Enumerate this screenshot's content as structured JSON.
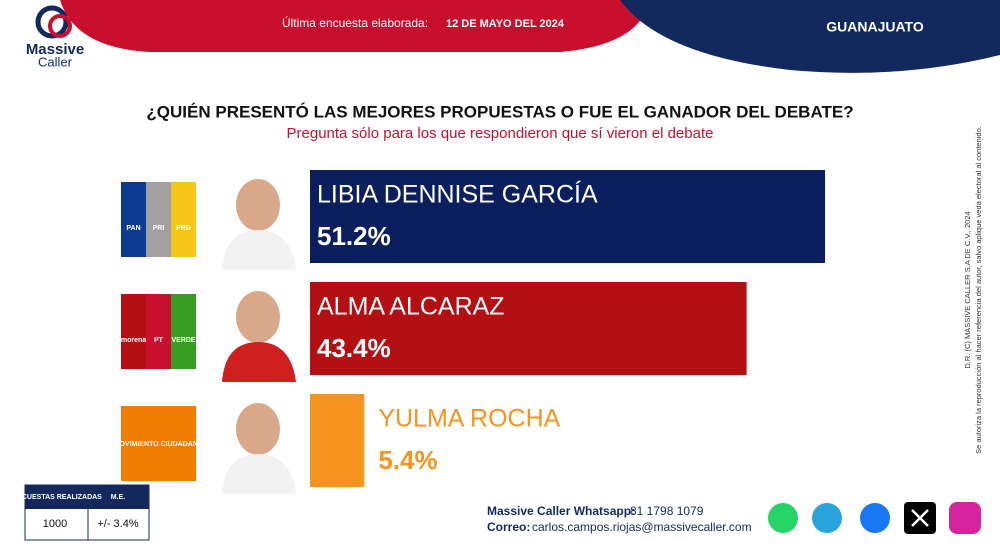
{
  "logo": {
    "line1": "Massive",
    "line2": "Caller"
  },
  "header": {
    "label": "Última encuesta elaborada:",
    "date": "12 DE MAYO DEL 2024",
    "region": "GUANAJUATO"
  },
  "chart_data": {
    "type": "bar",
    "orientation": "horizontal",
    "title": "¿QUIÉN PRESENTÓ LAS MEJORES PROPUESTAS O FUE EL GANADOR DEL DEBATE?",
    "subtitle": "Pregunta sólo para los que respondieron que sí vieron el debate",
    "categories": [
      "LIBIA DENNISE GARCÍA",
      "ALMA ALCARAZ",
      "YULMA ROCHA"
    ],
    "values": [
      51.2,
      43.4,
      5.4
    ],
    "value_labels": [
      "51.2%",
      "43.4%",
      "5.4%"
    ],
    "colors": [
      "#0b1f5e",
      "#b40f12",
      "#f7931e"
    ],
    "parties": [
      [
        "PAN",
        "PRI",
        "PRD"
      ],
      [
        "morena",
        "PT",
        "VERDE"
      ],
      [
        "MOVIMIENTO CIUDADANO"
      ]
    ]
  },
  "side": {
    "copyright": "D.R. (C) MASSIVE CALLER S.A DE C.V., 2024",
    "notice": "Se autoriza la reproducción al hacer referencia del autor, salvo aplique veda electoral al contenido."
  },
  "footer": {
    "table": {
      "headers": [
        "ENCUESTAS REALIZADAS",
        "M.E."
      ],
      "row": [
        1000,
        "+/- 3.4%"
      ]
    },
    "whatsapp_label": "Massive Caller Whatsapp:",
    "whatsapp": "81 1798 1079",
    "email_label": "Correo:",
    "email": "carlos.campos.riojas@massivecaller.com"
  }
}
